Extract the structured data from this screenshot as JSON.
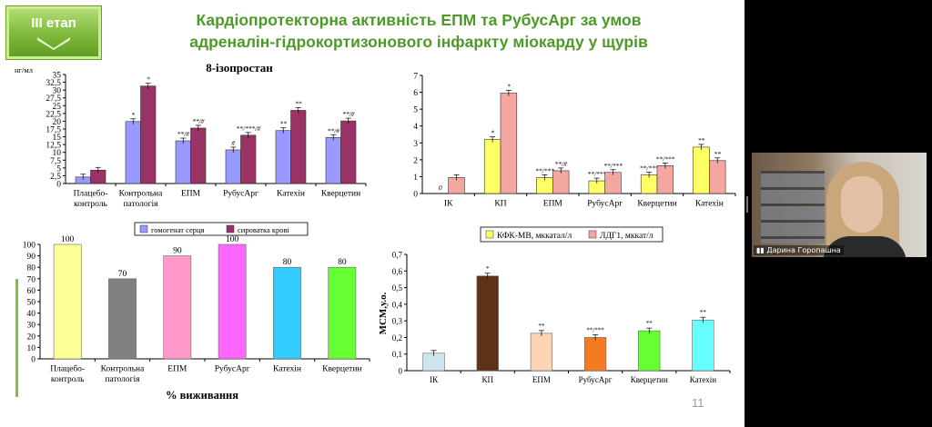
{
  "slide": {
    "badge": "ІІІ етап",
    "title_line1": "Кардіопротекторна активність ЕПМ та РубусАрг за умов",
    "title_line2": "адреналін-гідрокортизонового інфаркту міокарду у щурів",
    "page_number": "11"
  },
  "webcam": {
    "participant": "Дарина Горопашна"
  },
  "chart_data": [
    {
      "id": "isoprostane",
      "type": "bar",
      "title": "8-ізопростан",
      "ylabel": "нг/мл",
      "ylim": [
        0,
        35
      ],
      "yticks": [
        "0",
        "2,5",
        "5",
        "7,5",
        "10",
        "12,5",
        "15",
        "17,5",
        "20",
        "22,5",
        "25",
        "27,5",
        "30",
        "32,5",
        "35"
      ],
      "categories": [
        [
          "Плацебо-",
          "контроль"
        ],
        [
          "Контрольна",
          "патологія"
        ],
        [
          "ЕПМ"
        ],
        [
          "РубусАрг"
        ],
        [
          "Катехін"
        ],
        [
          "Кверцетин"
        ]
      ],
      "series": [
        {
          "name": "гомогенат серця",
          "color": "#9999ff",
          "values": [
            2.1,
            19.9,
            13.7,
            10.8,
            17.0,
            14.8
          ],
          "labels": [
            "",
            "*",
            "**/#",
            "#",
            "**",
            "**/#"
          ]
        },
        {
          "name": "сироватка крові",
          "color": "#993366",
          "values": [
            4.3,
            31.3,
            17.8,
            15.5,
            23.5,
            20.1
          ],
          "labels": [
            "",
            "*",
            "**/#",
            "**/***/#",
            "**",
            "**/#"
          ]
        }
      ],
      "legend": "bottom"
    },
    {
      "id": "enzymes",
      "type": "bar",
      "ylim": [
        0,
        7
      ],
      "yticks": [
        "0",
        "1",
        "2",
        "3",
        "4",
        "5",
        "6",
        "7"
      ],
      "categories": [
        [
          "ІК"
        ],
        [
          "КП"
        ],
        [
          "ЕПМ"
        ],
        [
          "РубусАрг"
        ],
        [
          "Кверцетин"
        ],
        [
          "Катехін"
        ]
      ],
      "series": [
        {
          "name": "КФК-МВ, мккатал/л",
          "color": "#ffff66",
          "values": [
            0,
            3.2,
            0.95,
            0.75,
            1.1,
            2.75
          ],
          "labels": [
            "0",
            "*",
            "**/***",
            "**/***",
            "**/***",
            "**"
          ]
        },
        {
          "name": "ЛДГ1, мккат/л",
          "color": "#f4a6a0",
          "values": [
            0.95,
            5.95,
            1.35,
            1.25,
            1.65,
            1.95
          ],
          "labels": [
            "",
            "*",
            "**/#",
            "**/***",
            "**/***",
            "**"
          ]
        }
      ],
      "legend": "bottom"
    },
    {
      "id": "survival",
      "type": "bar",
      "title": "% виживання",
      "ylim": [
        0,
        100
      ],
      "yticks": [
        "0",
        "10",
        "20",
        "30",
        "40",
        "50",
        "60",
        "70",
        "80",
        "90",
        "100"
      ],
      "categories": [
        [
          "Плацебо-",
          "контроль"
        ],
        [
          "Контрольна",
          "патологія"
        ],
        [
          "ЕПМ"
        ],
        [
          "РубусАрг"
        ],
        [
          "Катехін"
        ],
        [
          "Кверцетин"
        ]
      ],
      "values": [
        100,
        70,
        90,
        100,
        80,
        80
      ],
      "value_labels": [
        "100",
        "70",
        "90",
        "100",
        "80",
        "80"
      ],
      "colors": [
        "#ffff99",
        "#808080",
        "#ff99cc",
        "#ff66ff",
        "#33ccff",
        "#66ff33"
      ]
    },
    {
      "id": "mcm",
      "type": "bar",
      "ylabel": "МСМ,у.о.",
      "ylim": [
        0,
        0.7
      ],
      "yticks": [
        "0",
        "0,1",
        "0,2",
        "0,3",
        "0,4",
        "0,5",
        "0,6",
        "0,7"
      ],
      "categories": [
        [
          "ІК"
        ],
        [
          "КП"
        ],
        [
          "ЕПМ"
        ],
        [
          "РубусАрг"
        ],
        [
          "Кверцетин"
        ],
        [
          "Катехін"
        ]
      ],
      "values": [
        0.105,
        0.57,
        0.225,
        0.2,
        0.24,
        0.305
      ],
      "labels": [
        "",
        "*",
        "**",
        "**/***",
        "**",
        "**"
      ],
      "colors": [
        "#cce6f0",
        "#5c3317",
        "#fcd5b4",
        "#f47b20",
        "#66ff33",
        "#66ffff"
      ]
    }
  ]
}
